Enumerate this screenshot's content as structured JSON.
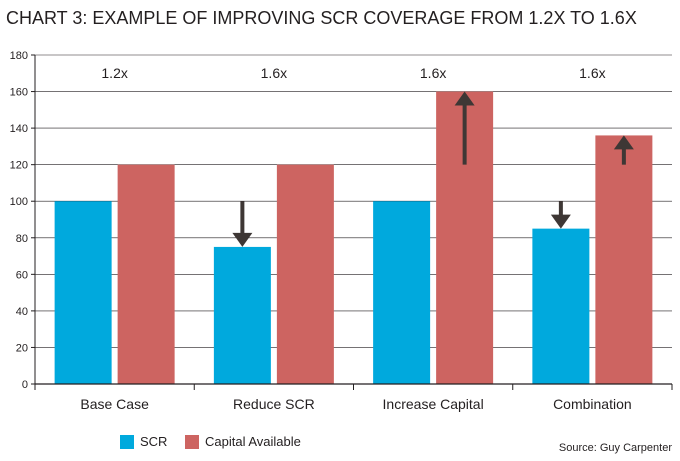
{
  "chart_data": {
    "type": "bar",
    "title": "CHART 3: EXAMPLE OF IMPROVING SCR COVERAGE FROM 1.2X TO 1.6X",
    "xlabel": "",
    "ylabel": "",
    "ylim": [
      0,
      180
    ],
    "yticks": [
      0,
      20,
      40,
      60,
      80,
      100,
      120,
      140,
      160,
      180
    ],
    "categories": [
      "Base Case",
      "Reduce SCR",
      "Increase Capital",
      "Combination"
    ],
    "series": [
      {
        "name": "SCR",
        "color": "#00a9dd",
        "values": [
          100,
          75,
          100,
          85
        ]
      },
      {
        "name": "Capital Available",
        "color": "#cd6461",
        "values": [
          120,
          120,
          160,
          136
        ]
      }
    ],
    "ratio_labels": [
      "1.2x",
      "1.6x",
      "1.6x",
      "1.6x"
    ],
    "arrows": [
      {
        "category": "Reduce SCR",
        "series": "SCR",
        "direction": "down",
        "from": 100,
        "to": 75
      },
      {
        "category": "Increase Capital",
        "series": "Capital Available",
        "direction": "up",
        "from": 120,
        "to": 160
      },
      {
        "category": "Combination",
        "series": "SCR",
        "direction": "down",
        "from": 100,
        "to": 85
      },
      {
        "category": "Combination",
        "series": "Capital Available",
        "direction": "up",
        "from": 120,
        "to": 136
      }
    ],
    "grid": true,
    "legend": "bottom-left",
    "source": "Source: Guy Carpenter"
  },
  "colors": {
    "axis": "#231f20",
    "grid": "#231f20",
    "arrow": "#3e3735"
  }
}
